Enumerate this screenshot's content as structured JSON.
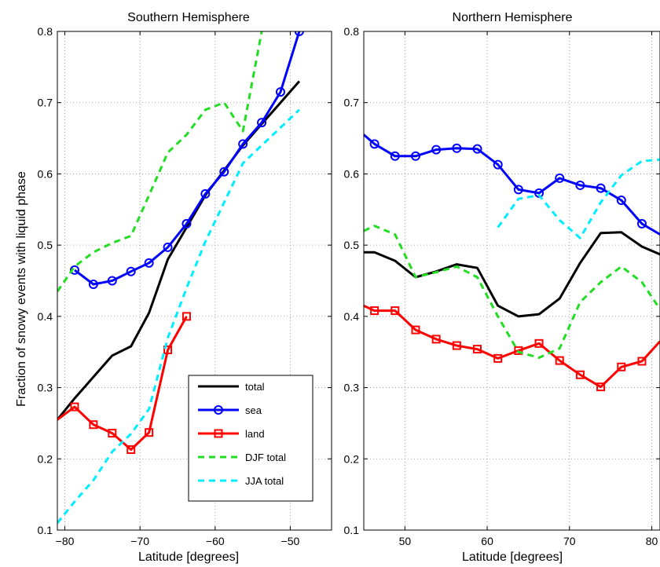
{
  "ylabel": "Fraction of snowy events with liquid phase",
  "legend": [
    {
      "label": "total",
      "color": "#000000",
      "dash": "",
      "marker": ""
    },
    {
      "label": "sea",
      "color": "#0000ff",
      "dash": "",
      "marker": "circle"
    },
    {
      "label": "land",
      "color": "#ff0000",
      "dash": "",
      "marker": "square"
    },
    {
      "label": "DJF total",
      "color": "#22dd22",
      "dash": "8,6",
      "marker": ""
    },
    {
      "label": "JJA total",
      "color": "#00eeff",
      "dash": "8,6",
      "marker": ""
    }
  ],
  "chart_data": [
    {
      "type": "line",
      "title": "Southern Hemisphere",
      "xlabel": "Latitude [degrees]",
      "ylabel": "Fraction of snowy events with liquid phase",
      "xlim": [
        -81,
        -44.5
      ],
      "ylim": [
        0.1,
        0.8
      ],
      "xticks": [
        -80,
        -70,
        -60,
        -50
      ],
      "xtick_labels": [
        "−80",
        "−70",
        "−60",
        "−50"
      ],
      "yticks": [
        0.1,
        0.2,
        0.3,
        0.4,
        0.5,
        0.6,
        0.7,
        0.8
      ],
      "ytick_labels": [
        "0.1",
        "0.2",
        "0.3",
        "0.4",
        "0.5",
        "0.6",
        "0.7",
        "0.8"
      ],
      "grid": true,
      "legend_position": "bottom-right",
      "series": [
        {
          "name": "total",
          "color": "#000000",
          "dash": "",
          "marker": "",
          "x": [
            -81,
            -78.7,
            -76.2,
            -73.7,
            -71.2,
            -68.8,
            -66.3,
            -63.8,
            -61.3,
            -58.8,
            -56.3,
            -53.8,
            -51.3,
            -48.8
          ],
          "y": [
            0.255,
            0.285,
            0.315,
            0.345,
            0.358,
            0.405,
            0.48,
            0.525,
            0.57,
            0.605,
            0.64,
            0.67,
            0.7,
            0.73
          ]
        },
        {
          "name": "sea",
          "color": "#0000ff",
          "dash": "",
          "marker": "circle",
          "x": [
            -78.7,
            -76.2,
            -73.7,
            -71.2,
            -68.8,
            -66.3,
            -63.8,
            -61.3,
            -58.8,
            -56.3,
            -53.8,
            -51.3,
            -48.8
          ],
          "y": [
            0.465,
            0.445,
            0.45,
            0.463,
            0.475,
            0.497,
            0.53,
            0.572,
            0.603,
            0.642,
            0.672,
            0.715,
            0.8
          ]
        },
        {
          "name": "land",
          "color": "#ff0000",
          "dash": "",
          "marker": "square",
          "x": [
            -81,
            -78.7,
            -76.2,
            -73.7,
            -71.2,
            -68.8,
            -66.3,
            -63.8
          ],
          "y": [
            0.255,
            0.273,
            0.248,
            0.236,
            0.213,
            0.237,
            0.353,
            0.4
          ],
          "marker_from_index": 1
        },
        {
          "name": "DJF total",
          "color": "#22dd22",
          "dash": "8,6",
          "marker": "",
          "x": [
            -81,
            -78.7,
            -76.2,
            -73.7,
            -71.2,
            -68.8,
            -66.3,
            -63.8,
            -61.3,
            -58.8,
            -56.3,
            -53.8
          ],
          "y": [
            0.435,
            0.47,
            0.49,
            0.503,
            0.513,
            0.57,
            0.63,
            0.655,
            0.69,
            0.7,
            0.66,
            0.8
          ]
        },
        {
          "name": "JJA total",
          "color": "#00eeff",
          "dash": "8,6",
          "marker": "",
          "x": [
            -81,
            -78.7,
            -76.2,
            -73.7,
            -71.2,
            -68.8,
            -66.3,
            -63.8,
            -61.3,
            -58.8,
            -56.3,
            -53.8,
            -51.3,
            -48.8
          ],
          "y": [
            0.11,
            0.14,
            0.17,
            0.21,
            0.235,
            0.27,
            0.37,
            0.44,
            0.505,
            0.56,
            0.615,
            0.64,
            0.665,
            0.69
          ]
        }
      ]
    },
    {
      "type": "line",
      "title": "Northern Hemisphere",
      "xlabel": "Latitude [degrees]",
      "ylabel": "",
      "xlim": [
        45,
        81
      ],
      "ylim": [
        0.1,
        0.8
      ],
      "xticks": [
        50,
        60,
        70,
        80
      ],
      "xtick_labels": [
        "50",
        "60",
        "70",
        "80"
      ],
      "yticks": [
        0.1,
        0.2,
        0.3,
        0.4,
        0.5,
        0.6,
        0.7,
        0.8
      ],
      "ytick_labels": [
        "0.1",
        "0.2",
        "0.3",
        "0.4",
        "0.5",
        "0.6",
        "0.7",
        "0.8"
      ],
      "grid": true,
      "series": [
        {
          "name": "total",
          "color": "#000000",
          "dash": "",
          "marker": "",
          "x": [
            45,
            46.3,
            48.8,
            51.3,
            53.8,
            56.3,
            58.8,
            61.3,
            63.8,
            66.3,
            68.8,
            71.3,
            73.8,
            76.3,
            78.8,
            81
          ],
          "y": [
            0.49,
            0.49,
            0.478,
            0.455,
            0.463,
            0.473,
            0.468,
            0.415,
            0.4,
            0.403,
            0.425,
            0.475,
            0.517,
            0.518,
            0.498,
            0.487
          ]
        },
        {
          "name": "sea",
          "color": "#0000ff",
          "dash": "",
          "marker": "circle",
          "x": [
            45,
            46.3,
            48.8,
            51.3,
            53.8,
            56.3,
            58.8,
            61.3,
            63.8,
            66.3,
            68.8,
            71.3,
            73.8,
            76.3,
            78.8,
            81
          ],
          "y": [
            0.655,
            0.642,
            0.625,
            0.625,
            0.634,
            0.636,
            0.635,
            0.613,
            0.578,
            0.573,
            0.594,
            0.584,
            0.58,
            0.563,
            0.53,
            0.515
          ],
          "marker_from_index": 1,
          "marker_to_index": 14
        },
        {
          "name": "land",
          "color": "#ff0000",
          "dash": "",
          "marker": "square",
          "x": [
            45,
            46.3,
            48.8,
            51.3,
            53.8,
            56.3,
            58.8,
            61.3,
            63.8,
            66.3,
            68.8,
            71.3,
            73.8,
            76.3,
            78.8,
            81
          ],
          "y": [
            0.415,
            0.408,
            0.408,
            0.381,
            0.368,
            0.359,
            0.354,
            0.341,
            0.352,
            0.362,
            0.338,
            0.318,
            0.301,
            0.329,
            0.337,
            0.365
          ],
          "marker_from_index": 1,
          "marker_to_index": 14
        },
        {
          "name": "DJF total",
          "color": "#22dd22",
          "dash": "8,6",
          "marker": "",
          "x": [
            45,
            46.3,
            48.8,
            51.3,
            53.8,
            56.3,
            58.8,
            61.3,
            63.8,
            66.3,
            68.8,
            71.3,
            73.8,
            76.3,
            78.8,
            81
          ],
          "y": [
            0.52,
            0.527,
            0.515,
            0.455,
            0.462,
            0.47,
            0.455,
            0.4,
            0.35,
            0.342,
            0.355,
            0.42,
            0.448,
            0.47,
            0.448,
            0.41
          ]
        },
        {
          "name": "JJA total",
          "color": "#00eeff",
          "dash": "8,6",
          "marker": "",
          "x": [
            61.3,
            63.8,
            66.3,
            68.8,
            71.3,
            73.8,
            76.3,
            78.8,
            81
          ],
          "y": [
            0.525,
            0.565,
            0.57,
            0.535,
            0.51,
            0.56,
            0.598,
            0.618,
            0.62
          ]
        }
      ]
    }
  ]
}
